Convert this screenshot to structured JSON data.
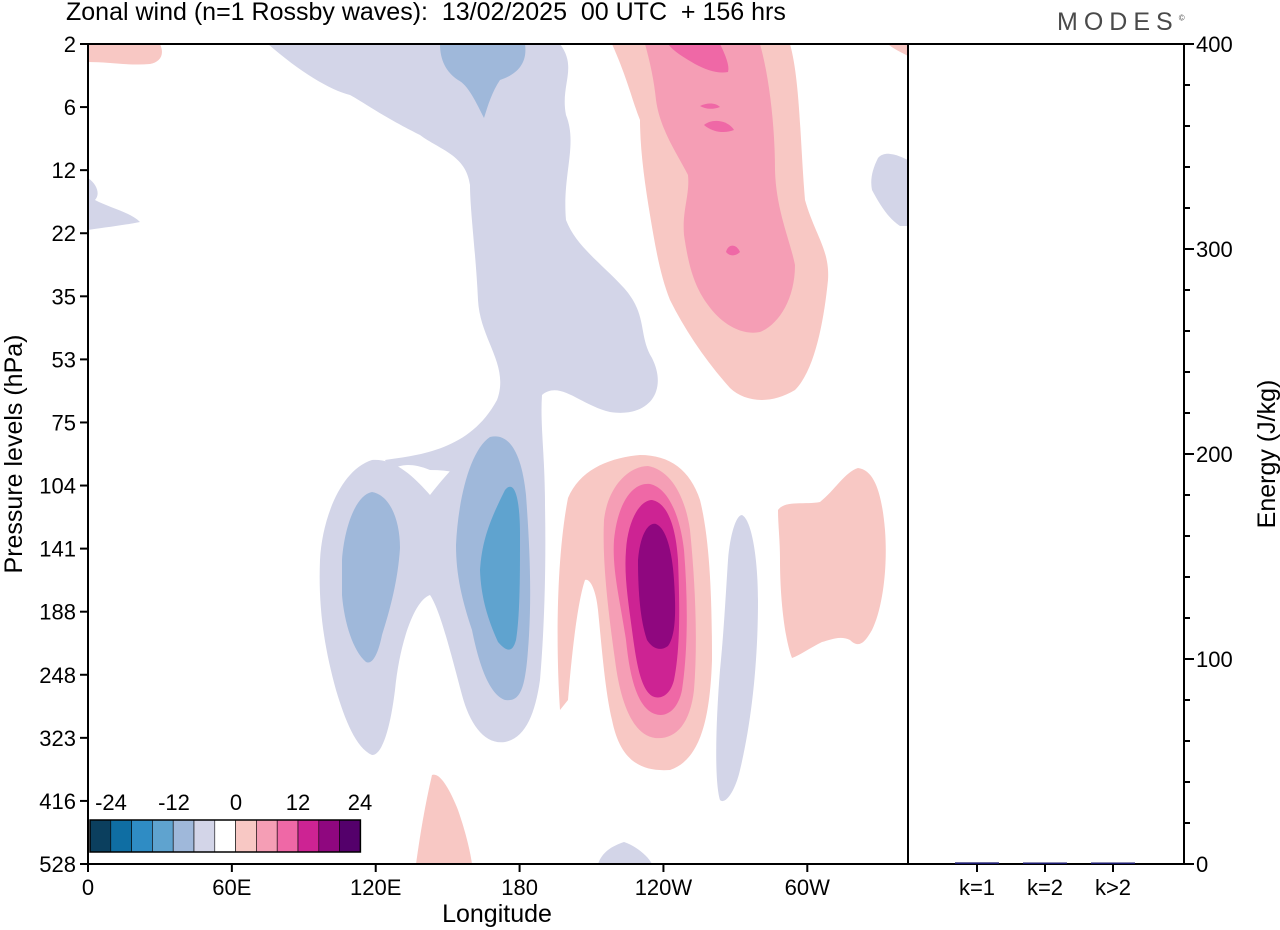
{
  "header": {
    "title": "Zonal wind (n=1 Rossby waves):  13/02/2025  00 UTC  + 156 hrs",
    "brand": "MODES",
    "brand_mark": "©"
  },
  "chart_data": [
    {
      "type": "heatmap",
      "title": "Zonal wind (n=1 Rossby waves):  13/02/2025  00 UTC  + 156 hrs",
      "xlabel": "Longitude",
      "ylabel": "Pressure levels (hPa)",
      "x_ticks": [
        "0",
        "60E",
        "120E",
        "180",
        "120W",
        "60W"
      ],
      "x_tick_values": [
        0,
        60,
        120,
        180,
        240,
        300
      ],
      "xlim": [
        0,
        342
      ],
      "y_ticks": [
        "2",
        "6",
        "12",
        "22",
        "35",
        "53",
        "75",
        "104",
        "141",
        "188",
        "248",
        "323",
        "416",
        "528"
      ],
      "y_scale": "categorical pressure levels (top = 2 hPa, bottom = 528 hPa)",
      "colorbar": {
        "labels": [
          "-24",
          "-12",
          "0",
          "12",
          "24"
        ],
        "levels": [
          -30,
          -25,
          -20,
          -15,
          -10,
          -5,
          0,
          5,
          10,
          15,
          20,
          25,
          30
        ],
        "colors": [
          "#0b3f5e",
          "#0f6ea3",
          "#2f8cc4",
          "#5fa3cf",
          "#9fb8da",
          "#d3d5e8",
          "#ffffff",
          "#f8c8c4",
          "#f59eb5",
          "#ef68a6",
          "#cd2393",
          "#8f077f",
          "#54006b"
        ],
        "placement": "bottom-left inside plot"
      },
      "features": [
        {
          "name": "upper negative band",
          "sign": "negative",
          "peak_level": "-10 to -5",
          "lon_range": [
            60,
            235
          ],
          "levels": "2-75"
        },
        {
          "name": "upper positive jet",
          "sign": "positive",
          "peak_level": "15 to 20",
          "lon_range": [
            230,
            315
          ],
          "levels": "2-53"
        },
        {
          "name": "lower negative lobe 1",
          "sign": "negative",
          "peak_level": "-10 to -5",
          "lon_range": [
            95,
            165
          ],
          "levels": "104-323"
        },
        {
          "name": "lower negative lobe 2",
          "sign": "negative",
          "peak_level": "-15 to -10",
          "lon_range": [
            155,
            190
          ],
          "levels": "75-323"
        },
        {
          "name": "lower positive core",
          "sign": "positive",
          "peak_level": "> 25",
          "lon_range": [
            205,
            262
          ],
          "levels": "104-416"
        },
        {
          "name": "lower negative strip",
          "sign": "negative",
          "peak_level": "-5 to 0",
          "lon_range": [
            265,
            282
          ],
          "levels": "141-416"
        },
        {
          "name": "lower positive patch east",
          "sign": "positive",
          "peak_level": "0 to 5",
          "lon_range": [
            292,
            335
          ],
          "levels": "104-248"
        }
      ]
    },
    {
      "type": "bar",
      "categories": [
        "k=1",
        "k=2",
        "k>2"
      ],
      "values": [
        0.8,
        0.3,
        0.4
      ],
      "ylabel": "Energy (J/kg)",
      "ylim": [
        0,
        400
      ],
      "y_ticks": [
        "0",
        "100",
        "200",
        "300",
        "400"
      ],
      "bar_color": "#1a1a6e",
      "grid": false
    }
  ]
}
